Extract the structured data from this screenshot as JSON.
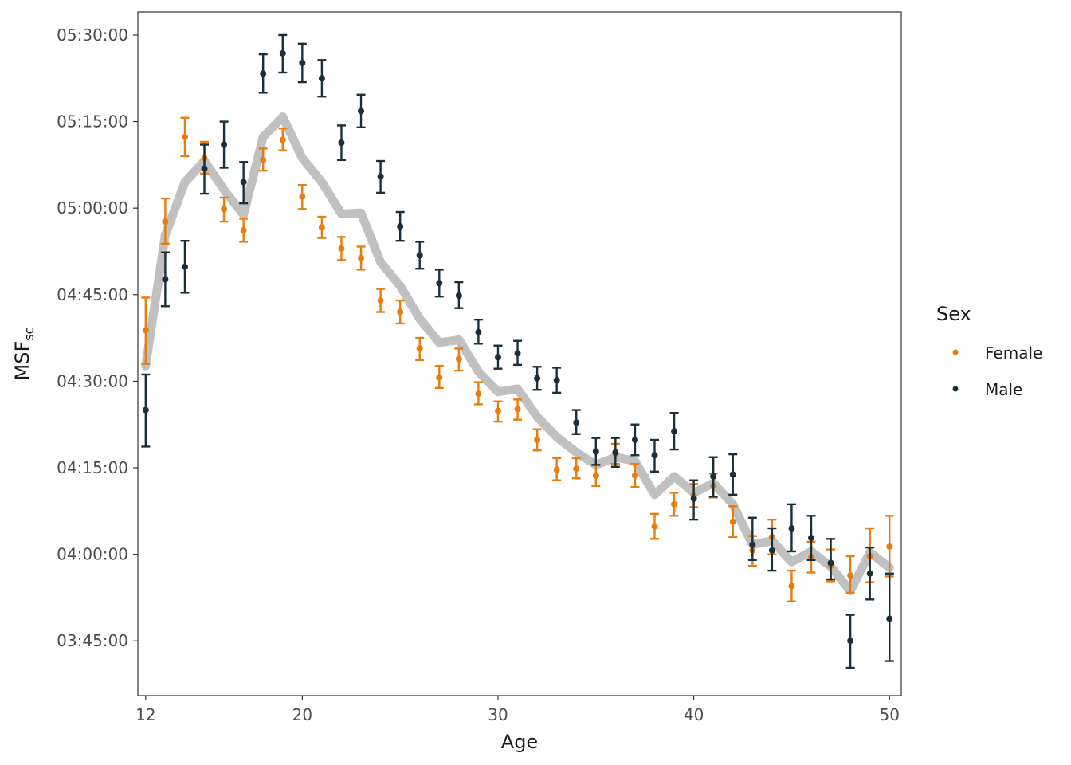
{
  "chart_data": {
    "type": "scatter",
    "xlabel": "Age",
    "ylabel": "MSF",
    "ylabel_subscript": "sc",
    "xlim": [
      11.6,
      50.6
    ],
    "ylim": [
      "03:35:30",
      "05:34:00"
    ],
    "x_ticks": [
      12,
      20,
      30,
      40,
      50
    ],
    "y_ticks": [
      "03:45:00",
      "04:00:00",
      "04:15:00",
      "04:30:00",
      "04:45:00",
      "05:00:00",
      "05:15:00",
      "05:30:00"
    ],
    "grid": false,
    "legend": {
      "title": "Sex",
      "position": "right",
      "entries": [
        {
          "label": "Female",
          "color": "#e87d0d"
        },
        {
          "label": "Male",
          "color": "#1b2f38"
        }
      ]
    },
    "series": [
      {
        "name": "Female",
        "color": "#e87d0d",
        "points": [
          {
            "x": 12,
            "y": "04:38:50",
            "lo": "04:33:00",
            "hi": "04:44:30"
          },
          {
            "x": 13,
            "y": "04:57:40",
            "lo": "04:53:50",
            "hi": "05:01:40"
          },
          {
            "x": 14,
            "y": "05:12:20",
            "lo": "05:09:00",
            "hi": "05:15:40"
          },
          {
            "x": 15,
            "y": "05:08:40",
            "lo": "05:06:00",
            "hi": "05:11:30"
          },
          {
            "x": 16,
            "y": "04:59:50",
            "lo": "04:57:40",
            "hi": "05:01:50"
          },
          {
            "x": 17,
            "y": "04:56:10",
            "lo": "04:54:10",
            "hi": "04:58:10"
          },
          {
            "x": 18,
            "y": "05:08:20",
            "lo": "05:06:30",
            "hi": "05:10:20"
          },
          {
            "x": 19,
            "y": "05:11:50",
            "lo": "05:10:00",
            "hi": "05:13:50"
          },
          {
            "x": 20,
            "y": "05:02:00",
            "lo": "04:59:50",
            "hi": "05:04:00"
          },
          {
            "x": 21,
            "y": "04:56:40",
            "lo": "04:54:50",
            "hi": "04:58:30"
          },
          {
            "x": 22,
            "y": "04:53:00",
            "lo": "04:51:00",
            "hi": "04:55:00"
          },
          {
            "x": 23,
            "y": "04:51:20",
            "lo": "04:49:20",
            "hi": "04:53:20"
          },
          {
            "x": 24,
            "y": "04:44:00",
            "lo": "04:42:00",
            "hi": "04:46:00"
          },
          {
            "x": 25,
            "y": "04:42:00",
            "lo": "04:40:00",
            "hi": "04:44:00"
          },
          {
            "x": 26,
            "y": "04:35:40",
            "lo": "04:33:40",
            "hi": "04:37:30"
          },
          {
            "x": 27,
            "y": "04:30:40",
            "lo": "04:28:50",
            "hi": "04:32:40"
          },
          {
            "x": 28,
            "y": "04:33:50",
            "lo": "04:31:50",
            "hi": "04:35:40"
          },
          {
            "x": 29,
            "y": "04:27:50",
            "lo": "04:26:00",
            "hi": "04:29:50"
          },
          {
            "x": 30,
            "y": "04:24:50",
            "lo": "04:23:00",
            "hi": "04:26:30"
          },
          {
            "x": 31,
            "y": "04:25:10",
            "lo": "04:23:20",
            "hi": "04:26:50"
          },
          {
            "x": 32,
            "y": "04:19:50",
            "lo": "04:18:00",
            "hi": "04:21:40"
          },
          {
            "x": 33,
            "y": "04:14:40",
            "lo": "04:12:50",
            "hi": "04:16:40"
          },
          {
            "x": 34,
            "y": "04:14:50",
            "lo": "04:13:10",
            "hi": "04:16:40"
          },
          {
            "x": 35,
            "y": "04:13:40",
            "lo": "04:11:50",
            "hi": "04:15:30"
          },
          {
            "x": 36,
            "y": "04:17:30",
            "lo": "04:15:40",
            "hi": "04:19:10"
          },
          {
            "x": 37,
            "y": "04:13:40",
            "lo": "04:11:40",
            "hi": "04:15:40"
          },
          {
            "x": 38,
            "y": "04:04:50",
            "lo": "04:02:40",
            "hi": "04:07:00"
          },
          {
            "x": 39,
            "y": "04:08:40",
            "lo": "04:06:40",
            "hi": "04:10:40"
          },
          {
            "x": 40,
            "y": "04:10:10",
            "lo": "04:08:10",
            "hi": "04:12:10"
          },
          {
            "x": 41,
            "y": "04:11:50",
            "lo": "04:09:50",
            "hi": "04:14:00"
          },
          {
            "x": 42,
            "y": "04:05:40",
            "lo": "04:03:00",
            "hi": "04:08:20"
          },
          {
            "x": 43,
            "y": "04:00:40",
            "lo": "03:58:00",
            "hi": "04:03:10"
          },
          {
            "x": 44,
            "y": "04:03:00",
            "lo": "04:00:00",
            "hi": "04:06:00"
          },
          {
            "x": 45,
            "y": "03:54:30",
            "lo": "03:51:50",
            "hi": "03:57:10"
          },
          {
            "x": 46,
            "y": "03:59:30",
            "lo": "03:56:50",
            "hi": "04:02:10"
          },
          {
            "x": 47,
            "y": "03:58:00",
            "lo": "03:55:20",
            "hi": "04:00:50"
          },
          {
            "x": 48,
            "y": "03:56:20",
            "lo": "03:53:20",
            "hi": "03:59:40"
          },
          {
            "x": 49,
            "y": "03:59:40",
            "lo": "03:55:10",
            "hi": "04:04:30"
          },
          {
            "x": 50,
            "y": "04:01:20",
            "lo": "03:56:10",
            "hi": "04:06:40"
          }
        ]
      },
      {
        "name": "Male",
        "color": "#1b2f38",
        "points": [
          {
            "x": 12,
            "y": "04:25:00",
            "lo": "04:18:40",
            "hi": "04:31:10"
          },
          {
            "x": 13,
            "y": "04:47:40",
            "lo": "04:43:00",
            "hi": "04:52:20"
          },
          {
            "x": 14,
            "y": "04:49:50",
            "lo": "04:45:20",
            "hi": "04:54:20"
          },
          {
            "x": 15,
            "y": "05:06:50",
            "lo": "05:02:30",
            "hi": "05:11:00"
          },
          {
            "x": 16,
            "y": "05:11:00",
            "lo": "05:07:00",
            "hi": "05:15:00"
          },
          {
            "x": 17,
            "y": "05:04:30",
            "lo": "05:00:50",
            "hi": "05:08:00"
          },
          {
            "x": 18,
            "y": "05:23:20",
            "lo": "05:20:00",
            "hi": "05:26:40"
          },
          {
            "x": 19,
            "y": "05:26:50",
            "lo": "05:23:30",
            "hi": "05:30:00"
          },
          {
            "x": 20,
            "y": "05:25:10",
            "lo": "05:21:50",
            "hi": "05:28:30"
          },
          {
            "x": 21,
            "y": "05:22:30",
            "lo": "05:19:20",
            "hi": "05:25:40"
          },
          {
            "x": 22,
            "y": "05:11:20",
            "lo": "05:08:20",
            "hi": "05:14:20"
          },
          {
            "x": 23,
            "y": "05:16:50",
            "lo": "05:14:00",
            "hi": "05:19:40"
          },
          {
            "x": 24,
            "y": "05:05:30",
            "lo": "05:02:40",
            "hi": "05:08:10"
          },
          {
            "x": 25,
            "y": "04:56:50",
            "lo": "04:54:20",
            "hi": "04:59:20"
          },
          {
            "x": 26,
            "y": "04:51:50",
            "lo": "04:49:30",
            "hi": "04:54:10"
          },
          {
            "x": 27,
            "y": "04:47:00",
            "lo": "04:44:40",
            "hi": "04:49:20"
          },
          {
            "x": 28,
            "y": "04:44:50",
            "lo": "04:42:40",
            "hi": "04:47:10"
          },
          {
            "x": 29,
            "y": "04:38:30",
            "lo": "04:36:30",
            "hi": "04:40:40"
          },
          {
            "x": 30,
            "y": "04:34:10",
            "lo": "04:32:10",
            "hi": "04:36:10"
          },
          {
            "x": 31,
            "y": "04:34:50",
            "lo": "04:32:50",
            "hi": "04:37:00"
          },
          {
            "x": 32,
            "y": "04:30:30",
            "lo": "04:28:30",
            "hi": "04:32:30"
          },
          {
            "x": 33,
            "y": "04:30:10",
            "lo": "04:28:00",
            "hi": "04:32:20"
          },
          {
            "x": 34,
            "y": "04:22:50",
            "lo": "04:20:50",
            "hi": "04:25:00"
          },
          {
            "x": 35,
            "y": "04:17:50",
            "lo": "04:15:30",
            "hi": "04:20:10"
          },
          {
            "x": 36,
            "y": "04:17:40",
            "lo": "04:15:10",
            "hi": "04:20:10"
          },
          {
            "x": 37,
            "y": "04:19:50",
            "lo": "04:17:10",
            "hi": "04:22:30"
          },
          {
            "x": 38,
            "y": "04:17:10",
            "lo": "04:14:20",
            "hi": "04:19:50"
          },
          {
            "x": 39,
            "y": "04:21:20",
            "lo": "04:18:10",
            "hi": "04:24:30"
          },
          {
            "x": 40,
            "y": "04:09:40",
            "lo": "04:06:00",
            "hi": "04:12:50"
          },
          {
            "x": 41,
            "y": "04:13:30",
            "lo": "04:10:00",
            "hi": "04:16:50"
          },
          {
            "x": 42,
            "y": "04:13:50",
            "lo": "04:10:20",
            "hi": "04:17:20"
          },
          {
            "x": 43,
            "y": "04:01:40",
            "lo": "03:59:00",
            "hi": "04:06:20"
          },
          {
            "x": 44,
            "y": "04:00:40",
            "lo": "03:57:10",
            "hi": "04:04:30"
          },
          {
            "x": 45,
            "y": "04:04:30",
            "lo": "04:00:30",
            "hi": "04:08:40"
          },
          {
            "x": 46,
            "y": "04:02:50",
            "lo": "03:59:00",
            "hi": "04:06:40"
          },
          {
            "x": 47,
            "y": "03:58:30",
            "lo": "03:55:40",
            "hi": "04:02:40"
          },
          {
            "x": 48,
            "y": "03:45:00",
            "lo": "03:40:20",
            "hi": "03:49:30"
          },
          {
            "x": 49,
            "y": "03:56:40",
            "lo": "03:52:10",
            "hi": "04:01:10"
          },
          {
            "x": 50,
            "y": "03:48:50",
            "lo": "03:41:30",
            "hi": "03:56:40"
          }
        ]
      },
      {
        "name": "",
        "style": "line",
        "color": "#c0c0c0",
        "points": [
          {
            "x": 12,
            "y": "04:32:40"
          },
          {
            "x": 13,
            "y": "04:55:20"
          },
          {
            "x": 14,
            "y": "05:04:30"
          },
          {
            "x": 15,
            "y": "05:08:10"
          },
          {
            "x": 16,
            "y": "05:03:10"
          },
          {
            "x": 17,
            "y": "04:58:50"
          },
          {
            "x": 18,
            "y": "05:12:20"
          },
          {
            "x": 19,
            "y": "05:15:50"
          },
          {
            "x": 20,
            "y": "05:08:40"
          },
          {
            "x": 21,
            "y": "05:04:30"
          },
          {
            "x": 22,
            "y": "04:59:00"
          },
          {
            "x": 23,
            "y": "04:59:10"
          },
          {
            "x": 24,
            "y": "04:50:40"
          },
          {
            "x": 25,
            "y": "04:46:30"
          },
          {
            "x": 26,
            "y": "04:40:50"
          },
          {
            "x": 27,
            "y": "04:36:40"
          },
          {
            "x": 28,
            "y": "04:37:10"
          },
          {
            "x": 29,
            "y": "04:31:40"
          },
          {
            "x": 30,
            "y": "04:28:10"
          },
          {
            "x": 31,
            "y": "04:28:40"
          },
          {
            "x": 32,
            "y": "04:23:50"
          },
          {
            "x": 33,
            "y": "04:20:20"
          },
          {
            "x": 34,
            "y": "04:17:40"
          },
          {
            "x": 35,
            "y": "04:15:30"
          },
          {
            "x": 36,
            "y": "04:16:50"
          },
          {
            "x": 37,
            "y": "04:16:10"
          },
          {
            "x": 38,
            "y": "04:10:20"
          },
          {
            "x": 39,
            "y": "04:13:30"
          },
          {
            "x": 40,
            "y": "04:10:40"
          },
          {
            "x": 41,
            "y": "04:12:20"
          },
          {
            "x": 42,
            "y": "04:08:40"
          },
          {
            "x": 43,
            "y": "04:01:40"
          },
          {
            "x": 44,
            "y": "04:02:20"
          },
          {
            "x": 45,
            "y": "03:58:40"
          },
          {
            "x": 46,
            "y": "04:00:30"
          },
          {
            "x": 47,
            "y": "03:57:50"
          },
          {
            "x": 48,
            "y": "03:53:40"
          },
          {
            "x": 49,
            "y": "04:00:20"
          },
          {
            "x": 50,
            "y": "03:57:40"
          }
        ]
      }
    ]
  }
}
